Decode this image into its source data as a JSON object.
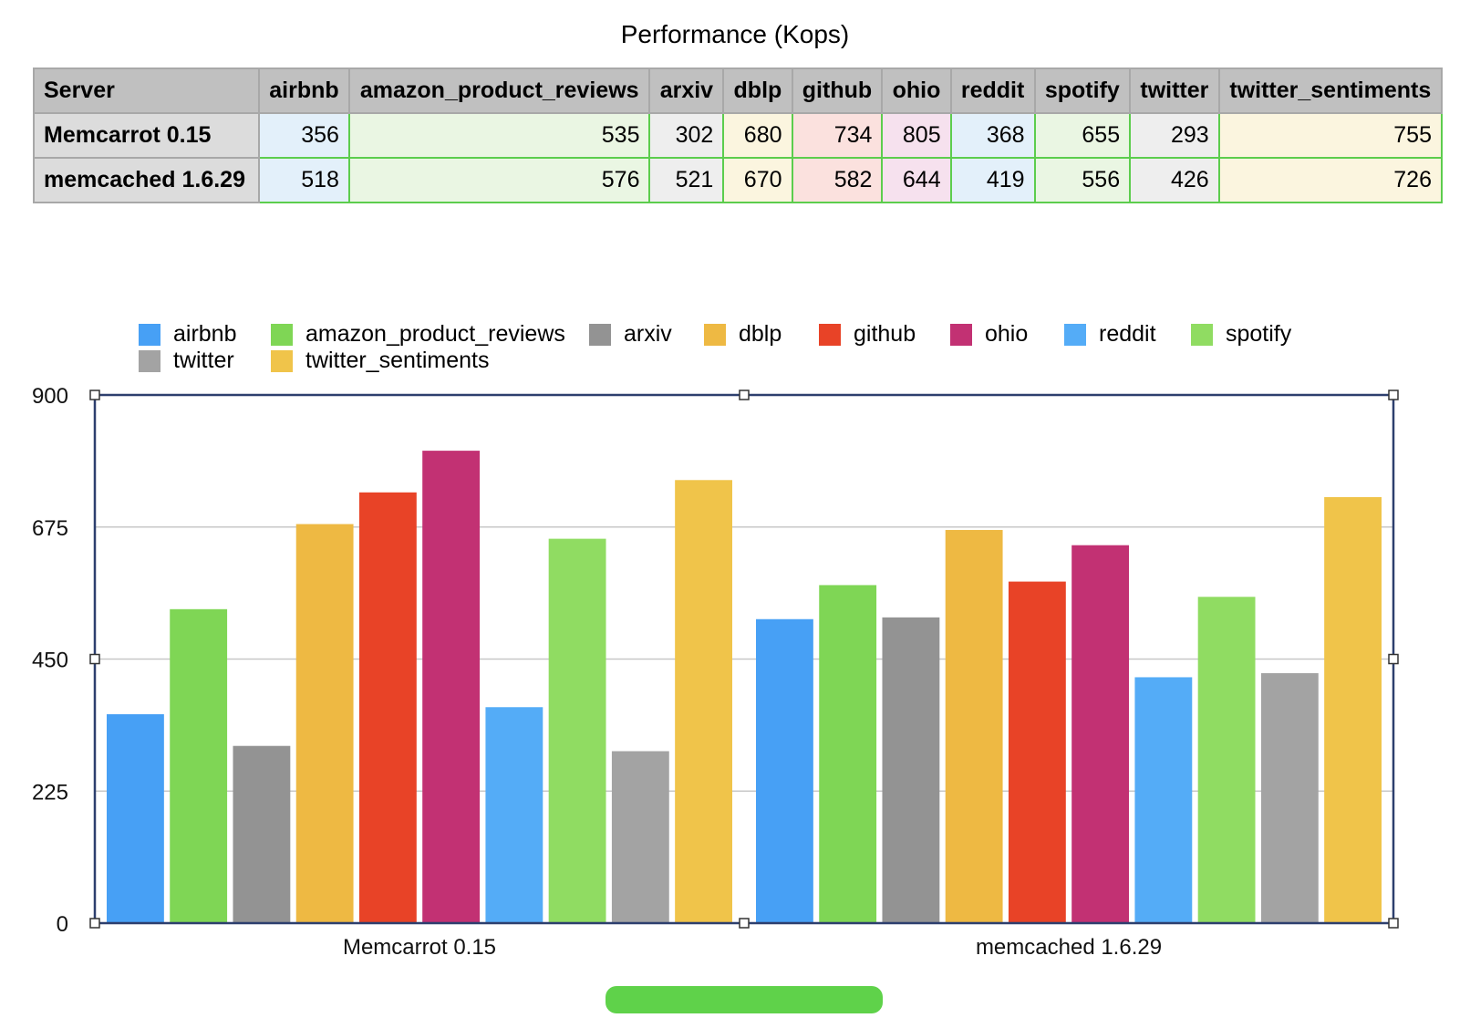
{
  "title": "Performance (Kops)",
  "table": {
    "headers": [
      "Server",
      "airbnb",
      "amazon_product_reviews",
      "arxiv",
      "dblp",
      "github",
      "ohio",
      "reddit",
      "spotify",
      "twitter",
      "twitter_sentiments"
    ],
    "rows": [
      {
        "server": "Memcarrot 0.15",
        "values": [
          "356",
          "535",
          "302",
          "680",
          "734",
          "805",
          "368",
          "655",
          "293",
          "755"
        ]
      },
      {
        "server": "memcached 1.6.29",
        "values": [
          "518",
          "576",
          "521",
          "670",
          "582",
          "644",
          "419",
          "556",
          "426",
          "726"
        ]
      }
    ],
    "cell_colors": [
      "#e3f0fa",
      "#eaf6e3",
      "#eeeeee",
      "#fbf5df",
      "#fbe1de",
      "#f6e1ee",
      "#e3f0fa",
      "#eaf6e3",
      "#eeeeee",
      "#fbf5df"
    ]
  },
  "chart_data": {
    "type": "bar",
    "categories": [
      "Memcarrot 0.15",
      "memcached 1.6.29"
    ],
    "series": [
      {
        "name": "airbnb",
        "color": "#47a0f5",
        "values": [
          356,
          518
        ]
      },
      {
        "name": "amazon_product_reviews",
        "color": "#7fd655",
        "values": [
          535,
          576
        ]
      },
      {
        "name": "arxiv",
        "color": "#939393",
        "values": [
          302,
          521
        ]
      },
      {
        "name": "dblp",
        "color": "#eeb943",
        "values": [
          680,
          670
        ]
      },
      {
        "name": "github",
        "color": "#e84327",
        "values": [
          734,
          582
        ]
      },
      {
        "name": "ohio",
        "color": "#c23173",
        "values": [
          805,
          644
        ]
      },
      {
        "name": "reddit",
        "color": "#54acf7",
        "values": [
          368,
          419
        ]
      },
      {
        "name": "spotify",
        "color": "#90dc62",
        "values": [
          655,
          556
        ]
      },
      {
        "name": "twitter",
        "color": "#a3a3a3",
        "values": [
          293,
          426
        ]
      },
      {
        "name": "twitter_sentiments",
        "color": "#f0c44a",
        "values": [
          755,
          726
        ]
      }
    ],
    "ylim": [
      0,
      900
    ],
    "yticks": [
      "0",
      "225",
      "450",
      "675",
      "900"
    ],
    "grid": true,
    "legend_position": "top"
  }
}
